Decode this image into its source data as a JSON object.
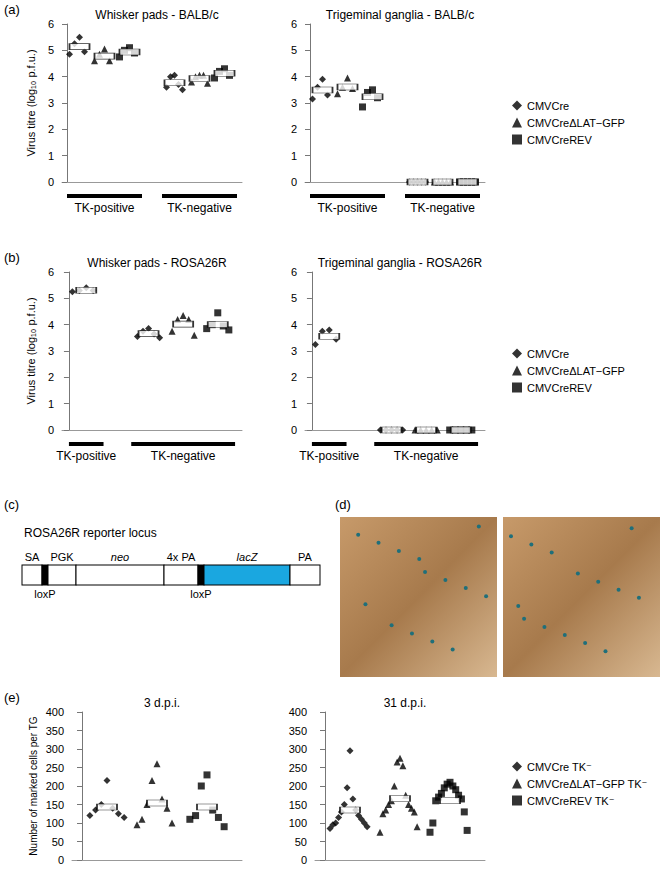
{
  "panel_labels": [
    "(a)",
    "(b)",
    "(c)",
    "(d)",
    "(e)"
  ],
  "diagram": {
    "title": "ROSA26R reporter locus",
    "parts": [
      {
        "label": "SA"
      },
      {
        "label": "loxP",
        "fill": "#000000",
        "label_position": "below"
      },
      {
        "label": "PGK"
      },
      {
        "label": "neo",
        "italic": true
      },
      {
        "label": "4x PA"
      },
      {
        "label": "loxP",
        "fill": "#000000",
        "label_position": "below"
      },
      {
        "label": "lacZ",
        "italic": true,
        "fill": "#1aa7e0"
      },
      {
        "label": "PA"
      }
    ]
  },
  "chart_data": [
    {
      "type": "scatter",
      "title": "Whisker pads - BALB/c",
      "ylabel": "Virus titre (log₁₀ p.f.u.)",
      "categories": [
        "TK-positive",
        "TK-negative"
      ],
      "ylim": [
        0,
        6
      ],
      "yticks": [
        0,
        1,
        2,
        3,
        4,
        5,
        6
      ],
      "grid": false,
      "series": [
        {
          "name": "CMVCre",
          "color": "#000000",
          "marker": "diamond",
          "values": [
            [
              5.5,
              5.25,
              4.95,
              4.85
            ],
            [
              4.05,
              4.0,
              3.7,
              3.6,
              3.5
            ]
          ],
          "means": [
            5.14,
            3.77
          ]
        },
        {
          "name": "CMVCreΔLAT−GFP",
          "color": "#000000",
          "marker": "triangle",
          "values": [
            [
              5.05,
              4.85,
              4.6,
              4.6
            ],
            [
              4.05,
              4.0,
              4.05,
              3.8,
              3.75
            ]
          ],
          "means": [
            4.78,
            3.93
          ]
        },
        {
          "name": "CMVCreREV",
          "color": "#000000",
          "marker": "square",
          "values": [
            [
              5.1,
              5.0,
              4.9,
              4.75
            ],
            [
              4.3,
              4.2,
              4.05,
              3.95
            ]
          ],
          "means": [
            4.94,
            4.13
          ]
        }
      ]
    },
    {
      "type": "scatter",
      "title": "Trigeminal ganglia - BALB/c",
      "categories": [
        "TK-positive",
        "TK-negative"
      ],
      "ylim": [
        0,
        6
      ],
      "yticks": [
        0,
        1,
        2,
        3,
        4,
        5,
        6
      ],
      "grid": false,
      "legend": "right",
      "series": [
        {
          "name": "CMVCre",
          "color": "#000000",
          "marker": "diamond",
          "values": [
            [
              3.9,
              3.6,
              3.3,
              3.15
            ],
            [
              0,
              0,
              0,
              0,
              0
            ]
          ],
          "means": [
            3.49,
            0
          ]
        },
        {
          "name": "CMVCreΔLAT−GFP",
          "color": "#000000",
          "marker": "triangle",
          "values": [
            [
              3.95,
              3.6,
              3.55,
              3.35
            ],
            [
              0,
              0,
              0,
              0,
              0
            ]
          ],
          "means": [
            3.61,
            0
          ]
        },
        {
          "name": "CMVCreREV",
          "color": "#000000",
          "marker": "square",
          "values": [
            [
              3.5,
              3.4,
              3.2,
              2.85
            ],
            [
              0,
              0,
              0,
              0,
              0
            ]
          ],
          "means": [
            3.24,
            0
          ]
        }
      ]
    },
    {
      "type": "scatter",
      "title": "Whisker pads - ROSA26R",
      "ylabel": "Virus titre (log₁₀ p.f.u.)",
      "categories": [
        "TK-positive",
        "TK-negative"
      ],
      "ylim": [
        0,
        6
      ],
      "yticks": [
        0,
        1,
        2,
        3,
        4,
        5,
        6
      ],
      "grid": false,
      "series": [
        {
          "name": "CMVCre",
          "color": "#000000",
          "marker": "diamond",
          "values": [
            [
              5.4,
              5.3,
              5.3,
              5.25
            ],
            [
              3.85,
              3.75,
              3.65,
              3.55,
              3.5
            ]
          ],
          "means": [
            5.31,
            3.66
          ]
        },
        {
          "name": "CMVCreΔLAT−GFP",
          "color": "#000000",
          "marker": "triangle",
          "values": [
            null,
            [
              4.35,
              4.2,
              4.2,
              3.75,
              3.6
            ]
          ],
          "means": [
            null,
            4.02
          ]
        },
        {
          "name": "CMVCreREV",
          "color": "#000000",
          "marker": "square",
          "values": [
            null,
            [
              4.45,
              4.0,
              3.95,
              3.85,
              3.8
            ]
          ],
          "means": [
            null,
            4.01
          ]
        }
      ]
    },
    {
      "type": "scatter",
      "title": "Trigeminal ganglia - ROSA26R",
      "categories": [
        "TK-positive",
        "TK-negative"
      ],
      "ylim": [
        0,
        6
      ],
      "yticks": [
        0,
        1,
        2,
        3,
        4,
        5,
        6
      ],
      "grid": false,
      "legend": "right",
      "series": [
        {
          "name": "CMVCre",
          "color": "#000000",
          "marker": "diamond",
          "values": [
            [
              3.8,
              3.75,
              3.45,
              3.25
            ],
            [
              0,
              0,
              0,
              0,
              0
            ]
          ],
          "means": [
            3.56,
            0
          ]
        },
        {
          "name": "CMVCreΔLAT−GFP",
          "color": "#000000",
          "marker": "triangle",
          "values": [
            null,
            [
              0,
              0,
              0,
              0,
              0
            ]
          ],
          "means": [
            null,
            0
          ]
        },
        {
          "name": "CMVCreREV",
          "color": "#000000",
          "marker": "square",
          "values": [
            null,
            [
              0,
              0,
              0,
              0,
              0
            ]
          ],
          "means": [
            null,
            0
          ]
        }
      ]
    },
    {
      "type": "scatter",
      "title": "3 d.p.i.",
      "ylabel": "Number of marked cells per TG",
      "categories": [
        null
      ],
      "ylim": [
        0,
        400
      ],
      "yticks": [
        0,
        50,
        100,
        150,
        200,
        250,
        300,
        350,
        400
      ],
      "grid": false,
      "series": [
        {
          "name": "CMVCre TK⁻",
          "color": "#000000",
          "marker": "diamond",
          "values": [
            [
              215,
              150,
              140,
              135,
              125,
              120,
              115
            ]
          ],
          "means": [
            143
          ]
        },
        {
          "name": "CMVCreΔLAT−GFP TK⁻",
          "color": "#000000",
          "marker": "triangle",
          "values": [
            [
              260,
              215,
              165,
              150,
              140,
              110,
              100,
              95
            ]
          ],
          "means": [
            154
          ]
        },
        {
          "name": "CMVCreREV TK⁻",
          "color": "#000000",
          "marker": "square",
          "values": [
            [
              230,
              200,
              135,
              120,
              115,
              110,
              90
            ]
          ],
          "means": [
            143
          ]
        }
      ]
    },
    {
      "type": "scatter",
      "title": "31 d.p.i.",
      "categories": [
        null
      ],
      "ylim": [
        0,
        400
      ],
      "yticks": [
        0,
        50,
        100,
        150,
        200,
        250,
        300,
        350,
        400
      ],
      "grid": false,
      "legend": "right",
      "series": [
        {
          "name": "CMVCre TK⁻",
          "color": "#000000",
          "marker": "diamond",
          "values": [
            [
              295,
              195,
              165,
              150,
              135,
              130,
              120,
              115,
              110,
              100,
              100,
              95,
              90,
              85
            ]
          ],
          "means": [
            135
          ]
        },
        {
          "name": "CMVCreΔLAT−GFP TK⁻",
          "color": "#000000",
          "marker": "triangle",
          "values": [
            [
              275,
              265,
              255,
              200,
              175,
              160,
              150,
              150,
              140,
              135,
              130,
              125,
              90,
              75
            ]
          ],
          "means": [
            166
          ]
        },
        {
          "name": "CMVCreREV TK⁻",
          "color": "#000000",
          "marker": "square",
          "values": [
            [
              210,
              205,
              200,
              195,
              190,
              180,
              175,
              170,
              165,
              160,
              130,
              100,
              80,
              75
            ]
          ],
          "means": [
            160
          ]
        }
      ]
    }
  ]
}
